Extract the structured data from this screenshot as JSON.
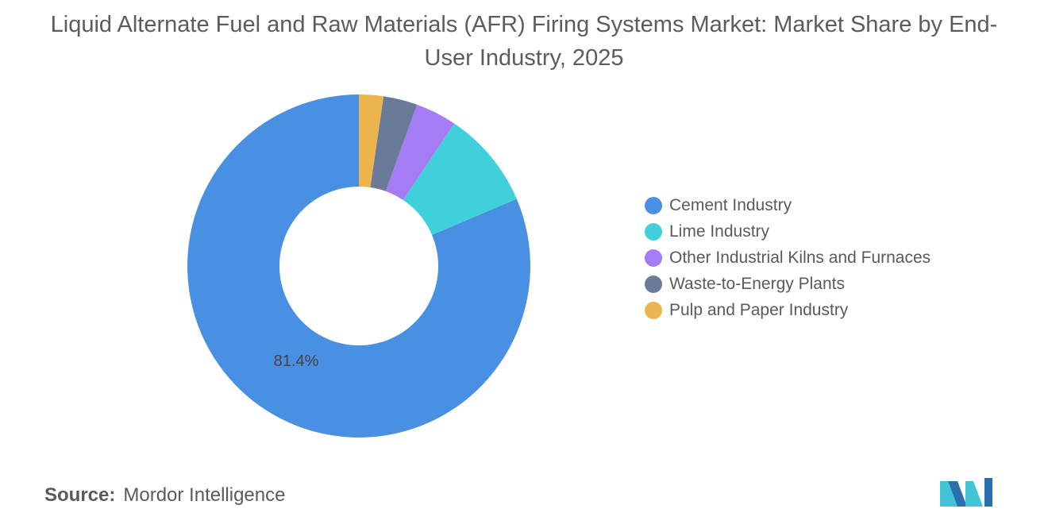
{
  "title": "Liquid Alternate Fuel and Raw Materials (AFR) Firing Systems Market: Market Share by End-User Industry, 2025",
  "source": {
    "label": "Source:",
    "text": "Mordor Intelligence"
  },
  "chart_data": {
    "type": "pie",
    "variant": "donut",
    "title": "Liquid Alternate Fuel and Raw Materials (AFR) Firing Systems Market: Market Share by End-User Industry, 2025",
    "legend_position": "right",
    "series": [
      {
        "name": "Cement Industry",
        "value": 81.4,
        "color": "#4a90e2",
        "label": "81.4%"
      },
      {
        "name": "Lime Industry",
        "value": 9.2,
        "color": "#40d0db"
      },
      {
        "name": "Other Industrial Kilns and Furnaces",
        "value": 3.9,
        "color": "#a57cf4"
      },
      {
        "name": "Waste-to-Energy Plants",
        "value": 3.2,
        "color": "#6a7b9a"
      },
      {
        "name": "Pulp and Paper Industry",
        "value": 2.3,
        "color": "#ecb44c"
      }
    ]
  }
}
